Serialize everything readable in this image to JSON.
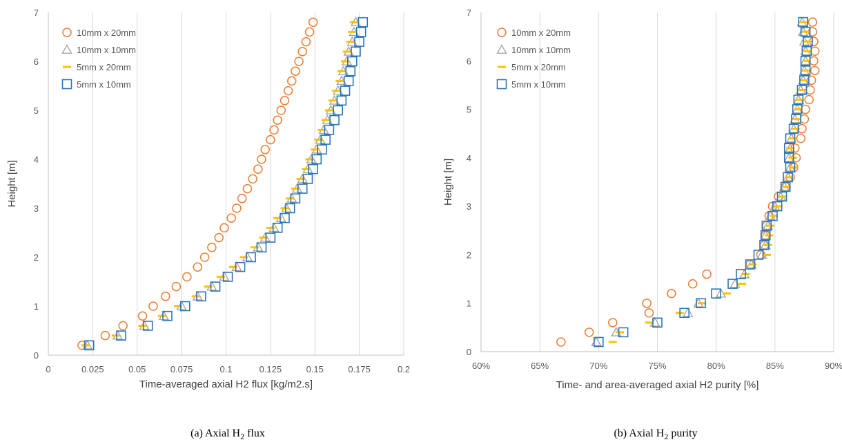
{
  "series_styles": {
    "10mm x 20mm": {
      "marker": "circle",
      "color": "#ED7D31"
    },
    "10mm x 10mm": {
      "marker": "triangle",
      "color": "#A5A5A5"
    },
    "5mm x 20mm": {
      "marker": "dash",
      "color": "#FFC000"
    },
    "5mm x 10mm": {
      "marker": "square",
      "color": "#2E75B6"
    }
  },
  "chart_data": [
    {
      "type": "scatter",
      "caption": "(a) Axial H",
      "caption_sub": "2",
      "caption_end": " flux",
      "xlabel": "Time-averaged axial H2 flux [kg/m2.s]",
      "ylabel": "Height [m]",
      "xlim": [
        0,
        0.2
      ],
      "ylim": [
        0,
        7
      ],
      "xticks": [
        0,
        0.025,
        0.05,
        0.075,
        0.1,
        0.125,
        0.15,
        0.175,
        0.2
      ],
      "xtick_labels": [
        "0",
        "0.025",
        "0.05",
        "0.075",
        "0.1",
        "0.125",
        "0.15",
        "0.175",
        "0.2"
      ],
      "yticks": [
        0,
        1,
        2,
        3,
        4,
        5,
        6,
        7
      ],
      "ytick_labels": [
        "0",
        "1",
        "2",
        "3",
        "4",
        "5",
        "6",
        "7"
      ],
      "grid": "vertical",
      "legend_position": "top-left",
      "y": [
        0.2,
        0.4,
        0.6,
        0.8,
        1.0,
        1.2,
        1.4,
        1.6,
        1.8,
        2.0,
        2.2,
        2.4,
        2.6,
        2.8,
        3.0,
        3.2,
        3.4,
        3.6,
        3.8,
        4.0,
        4.2,
        4.4,
        4.6,
        4.8,
        5.0,
        5.2,
        5.4,
        5.6,
        5.8,
        6.0,
        6.2,
        6.4,
        6.6,
        6.8
      ],
      "series": [
        {
          "name": "10mm x 20mm",
          "values": [
            0.019,
            0.032,
            0.042,
            0.053,
            0.059,
            0.066,
            0.072,
            0.078,
            0.084,
            0.088,
            0.092,
            0.096,
            0.099,
            0.103,
            0.106,
            0.109,
            0.112,
            0.115,
            0.118,
            0.12,
            0.122,
            0.125,
            0.127,
            0.129,
            0.131,
            0.133,
            0.135,
            0.137,
            0.139,
            0.141,
            0.143,
            0.145,
            0.147,
            0.149
          ]
        },
        {
          "name": "10mm x 10mm",
          "values": [
            0.022,
            0.039,
            0.054,
            0.065,
            0.075,
            0.084,
            0.092,
            0.099,
            0.106,
            0.112,
            0.118,
            0.122,
            0.127,
            0.131,
            0.134,
            0.137,
            0.14,
            0.143,
            0.146,
            0.148,
            0.151,
            0.153,
            0.155,
            0.157,
            0.159,
            0.161,
            0.163,
            0.165,
            0.166,
            0.168,
            0.169,
            0.171,
            0.172,
            0.173
          ]
        },
        {
          "name": "5mm x 20mm",
          "values": [
            0.021,
            0.038,
            0.053,
            0.064,
            0.073,
            0.083,
            0.09,
            0.097,
            0.104,
            0.11,
            0.116,
            0.121,
            0.125,
            0.129,
            0.133,
            0.136,
            0.139,
            0.142,
            0.145,
            0.147,
            0.15,
            0.152,
            0.154,
            0.156,
            0.158,
            0.16,
            0.162,
            0.164,
            0.165,
            0.167,
            0.168,
            0.17,
            0.171,
            0.172
          ]
        },
        {
          "name": "5mm x 10mm",
          "values": [
            0.023,
            0.041,
            0.056,
            0.067,
            0.077,
            0.086,
            0.094,
            0.101,
            0.108,
            0.114,
            0.12,
            0.125,
            0.129,
            0.133,
            0.136,
            0.139,
            0.143,
            0.146,
            0.149,
            0.151,
            0.154,
            0.156,
            0.158,
            0.161,
            0.163,
            0.165,
            0.167,
            0.169,
            0.17,
            0.171,
            0.173,
            0.175,
            0.176,
            0.177
          ]
        }
      ]
    },
    {
      "type": "scatter",
      "caption": "(b) Axial H",
      "caption_sub": "2",
      "caption_end": " purity",
      "xlabel": "Time- and area-averaged axial H2 purity [%]",
      "ylabel": "Height [m]",
      "xlim": [
        60,
        90
      ],
      "ylim": [
        0,
        7
      ],
      "xticks": [
        60,
        65,
        70,
        75,
        80,
        85,
        90
      ],
      "xtick_labels": [
        "60%",
        "65%",
        "70%",
        "75%",
        "80%",
        "85%",
        "90%"
      ],
      "yticks": [
        0,
        1,
        2,
        3,
        4,
        5,
        6,
        7
      ],
      "ytick_labels": [
        "0",
        "1",
        "2",
        "3",
        "4",
        "5",
        "6",
        "7"
      ],
      "grid": "vertical",
      "legend_position": "top-left",
      "y": [
        0.2,
        0.4,
        0.6,
        0.8,
        1.0,
        1.2,
        1.4,
        1.6,
        1.8,
        2.0,
        2.2,
        2.4,
        2.6,
        2.8,
        3.0,
        3.2,
        3.4,
        3.6,
        3.8,
        4.0,
        4.2,
        4.4,
        4.6,
        4.8,
        5.0,
        5.2,
        5.4,
        5.6,
        5.8,
        6.0,
        6.2,
        6.4,
        6.6,
        6.8
      ],
      "series": [
        {
          "name": "10mm x 20mm",
          "values": [
            66.8,
            69.2,
            71.2,
            74.3,
            74.1,
            76.2,
            78.0,
            79.2,
            82.9,
            83.8,
            84.1,
            84.2,
            84.3,
            84.5,
            84.8,
            85.3,
            85.9,
            86.3,
            86.6,
            86.8,
            86.7,
            87.2,
            87.3,
            87.5,
            87.6,
            87.9,
            88.0,
            88.1,
            88.4,
            88.3,
            88.4,
            88.3,
            88.2,
            88.2
          ]
        },
        {
          "name": "10mm x 10mm",
          "values": [
            69.8,
            71.5,
            74.8,
            77.6,
            78.5,
            80.4,
            81.6,
            82.4,
            83.0,
            83.9,
            84.2,
            84.2,
            84.4,
            84.6,
            85.0,
            85.5,
            85.8,
            86.1,
            86.3,
            86.2,
            86.3,
            86.4,
            86.6,
            86.7,
            86.9,
            87.0,
            87.2,
            87.4,
            87.5,
            87.6,
            87.6,
            87.5,
            87.4,
            87.3
          ]
        },
        {
          "name": "5mm x 20mm",
          "values": [
            71.2,
            71.8,
            74.3,
            76.9,
            78.8,
            80.9,
            82.2,
            82.5,
            83.1,
            84.3,
            84.4,
            84.5,
            84.6,
            84.9,
            85.2,
            85.6,
            86.0,
            86.2,
            86.6,
            86.5,
            86.3,
            86.5,
            86.8,
            86.9,
            87.0,
            87.1,
            87.3,
            87.5,
            87.6,
            87.7,
            87.8,
            87.8,
            87.6,
            87.4
          ]
        },
        {
          "name": "5mm x 10mm",
          "values": [
            70.0,
            72.1,
            75.0,
            77.3,
            78.7,
            80.0,
            81.4,
            82.1,
            82.9,
            83.6,
            84.1,
            84.2,
            84.3,
            84.8,
            85.2,
            85.6,
            85.9,
            86.1,
            86.3,
            86.2,
            86.2,
            86.3,
            86.6,
            86.8,
            86.9,
            87.0,
            87.3,
            87.5,
            87.6,
            87.6,
            87.7,
            87.8,
            87.6,
            87.4
          ]
        }
      ]
    }
  ]
}
